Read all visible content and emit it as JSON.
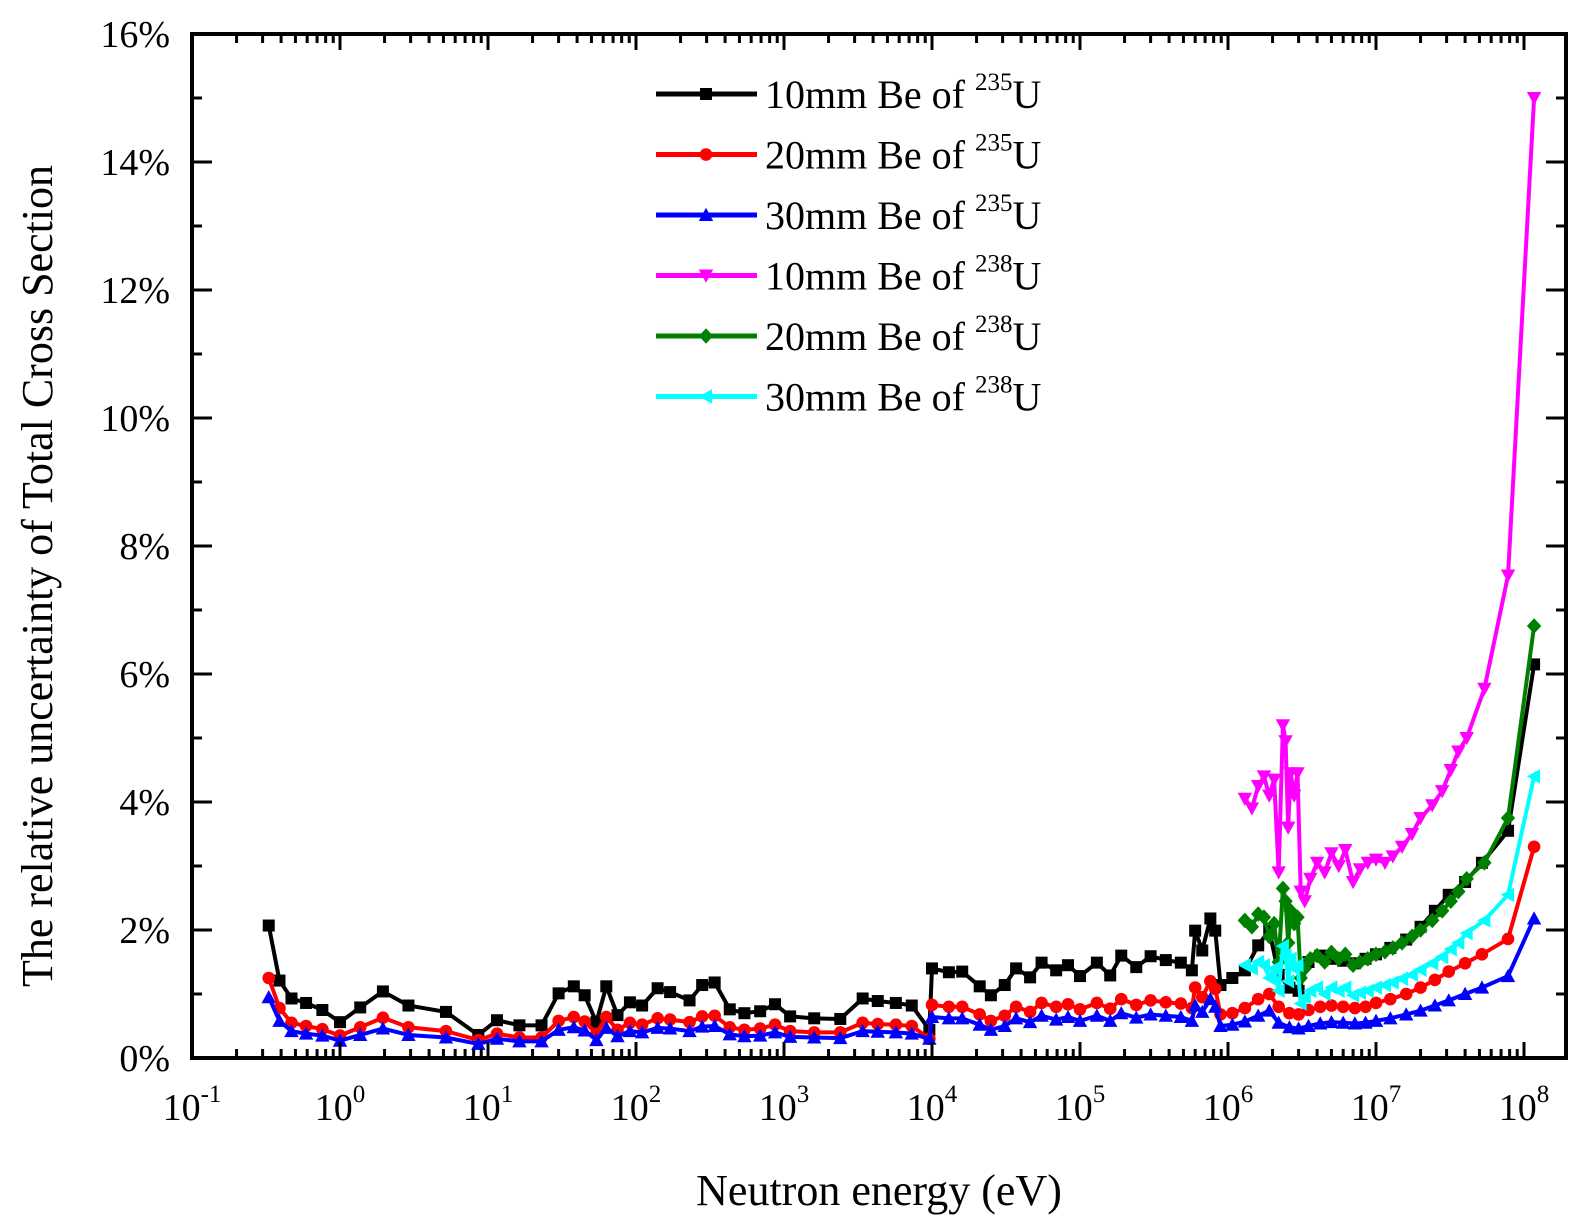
{
  "chart_data": {
    "type": "line",
    "title": "",
    "xlabel": "Neutron energy (eV)",
    "ylabel": "The relative uncertainty of Total Cross Section",
    "xscale": "log",
    "xlim": [
      0.1,
      150000000
    ],
    "ylim": [
      0,
      16
    ],
    "x_ticks": [
      {
        "value": 0.1,
        "base": "10",
        "exp": "-1"
      },
      {
        "value": 1,
        "base": "10",
        "exp": "0"
      },
      {
        "value": 10,
        "base": "10",
        "exp": "1"
      },
      {
        "value": 100,
        "base": "10",
        "exp": "2"
      },
      {
        "value": 1000,
        "base": "10",
        "exp": "3"
      },
      {
        "value": 10000,
        "base": "10",
        "exp": "4"
      },
      {
        "value": 100000,
        "base": "10",
        "exp": "5"
      },
      {
        "value": 1000000,
        "base": "10",
        "exp": "6"
      },
      {
        "value": 10000000,
        "base": "10",
        "exp": "7"
      },
      {
        "value": 100000000,
        "base": "10",
        "exp": "8"
      }
    ],
    "y_ticks": [
      {
        "value": 0,
        "label": "0%"
      },
      {
        "value": 2,
        "label": "2%"
      },
      {
        "value": 4,
        "label": "4%"
      },
      {
        "value": 6,
        "label": "6%"
      },
      {
        "value": 8,
        "label": "8%"
      },
      {
        "value": 10,
        "label": "10%"
      },
      {
        "value": 12,
        "label": "12%"
      },
      {
        "value": 14,
        "label": "14%"
      },
      {
        "value": 16,
        "label": "16%"
      }
    ],
    "grid": false,
    "legend_position": "top-center",
    "series": [
      {
        "name": "10mm Be of 235U",
        "legend_main": "10mm Be of ",
        "legend_sup": "235",
        "legend_tail": "U",
        "color": "#000000",
        "marker": "square",
        "x": [
          0.33,
          0.39,
          0.47,
          0.59,
          0.76,
          1.0,
          1.37,
          1.95,
          2.9,
          5.2,
          8.6,
          11.5,
          16.3,
          23,
          30,
          38,
          45,
          54,
          63,
          75,
          91,
          110,
          140,
          170,
          230,
          280,
          340,
          430,
          540,
          690,
          870,
          1100,
          1600,
          2400,
          3400,
          4300,
          5700,
          7300,
          9600,
          10000,
          13000,
          16000,
          21000,
          25000,
          31000,
          37000,
          46000,
          55000,
          69000,
          83000,
          100000,
          130000,
          160000,
          190000,
          240000,
          300000,
          380000,
          480000,
          570000,
          600000,
          670000,
          760000,
          820000,
          890000,
          1070000,
          1300000,
          1600000,
          1900000,
          2200000,
          2600000,
          3000000,
          3500000,
          4200000,
          5000000,
          6000000,
          7200000,
          8500000,
          10000000,
          12500000,
          16000000,
          20000000,
          25000000,
          31000000,
          40000000,
          52000000,
          78000000,
          117000000
        ],
        "y": [
          2.07,
          1.21,
          0.93,
          0.86,
          0.75,
          0.56,
          0.79,
          1.04,
          0.82,
          0.72,
          0.36,
          0.59,
          0.51,
          0.51,
          1.01,
          1.12,
          0.98,
          0.56,
          1.12,
          0.67,
          0.87,
          0.82,
          1.09,
          1.03,
          0.9,
          1.14,
          1.18,
          0.76,
          0.7,
          0.73,
          0.84,
          0.65,
          0.62,
          0.61,
          0.93,
          0.89,
          0.86,
          0.82,
          0.44,
          1.4,
          1.34,
          1.35,
          1.12,
          0.98,
          1.14,
          1.4,
          1.26,
          1.49,
          1.37,
          1.45,
          1.28,
          1.49,
          1.29,
          1.6,
          1.42,
          1.59,
          1.53,
          1.49,
          1.37,
          1.99,
          1.68,
          2.18,
          1.99,
          1.14,
          1.25,
          1.37,
          1.76,
          2.0,
          1.3,
          1.1,
          1.05,
          1.5,
          1.6,
          1.55,
          1.52,
          1.48,
          1.55,
          1.62,
          1.72,
          1.85,
          2.05,
          2.3,
          2.55,
          2.75,
          3.05,
          3.55,
          6.15
        ]
      },
      {
        "name": "20mm Be of 235U",
        "legend_main": "20mm Be of ",
        "legend_sup": "235",
        "legend_tail": "U",
        "color": "#ff0000",
        "marker": "circle",
        "x": [
          0.33,
          0.39,
          0.47,
          0.59,
          0.76,
          1.0,
          1.37,
          1.95,
          2.9,
          5.2,
          8.6,
          11.5,
          16.3,
          23,
          30,
          38,
          45,
          54,
          63,
          75,
          91,
          110,
          140,
          170,
          230,
          280,
          340,
          430,
          540,
          690,
          870,
          1100,
          1600,
          2400,
          3400,
          4300,
          5700,
          7300,
          9600,
          10000,
          13000,
          16000,
          21000,
          25000,
          31000,
          37000,
          46000,
          55000,
          69000,
          83000,
          100000,
          130000,
          160000,
          190000,
          240000,
          300000,
          380000,
          480000,
          570000,
          600000,
          670000,
          760000,
          820000,
          890000,
          1070000,
          1300000,
          1600000,
          1900000,
          2200000,
          2600000,
          3000000,
          3500000,
          4200000,
          5000000,
          6000000,
          7200000,
          8500000,
          10000000,
          12500000,
          16000000,
          20000000,
          25000000,
          31000000,
          40000000,
          52000000,
          78000000,
          117000000
        ],
        "y": [
          1.25,
          0.78,
          0.55,
          0.5,
          0.45,
          0.35,
          0.48,
          0.63,
          0.48,
          0.42,
          0.28,
          0.38,
          0.32,
          0.32,
          0.58,
          0.64,
          0.57,
          0.38,
          0.64,
          0.44,
          0.55,
          0.52,
          0.62,
          0.6,
          0.56,
          0.65,
          0.66,
          0.48,
          0.44,
          0.46,
          0.52,
          0.42,
          0.4,
          0.4,
          0.55,
          0.53,
          0.52,
          0.5,
          0.3,
          0.83,
          0.8,
          0.8,
          0.68,
          0.58,
          0.66,
          0.8,
          0.72,
          0.86,
          0.8,
          0.84,
          0.76,
          0.86,
          0.77,
          0.92,
          0.83,
          0.9,
          0.87,
          0.85,
          0.78,
          1.1,
          0.95,
          1.2,
          1.08,
          0.68,
          0.7,
          0.78,
          0.92,
          1.0,
          0.8,
          0.7,
          0.68,
          0.75,
          0.8,
          0.82,
          0.8,
          0.78,
          0.8,
          0.86,
          0.92,
          1.0,
          1.1,
          1.22,
          1.35,
          1.48,
          1.62,
          1.86,
          3.3
        ]
      },
      {
        "name": "30mm Be of 235U",
        "legend_main": "30mm Be of ",
        "legend_sup": "235",
        "legend_tail": "U",
        "color": "#0000ff",
        "marker": "triangle-up",
        "x": [
          0.33,
          0.39,
          0.47,
          0.59,
          0.76,
          1.0,
          1.37,
          1.95,
          2.9,
          5.2,
          8.6,
          11.5,
          16.3,
          23,
          30,
          38,
          45,
          54,
          63,
          75,
          91,
          110,
          140,
          170,
          230,
          280,
          340,
          430,
          540,
          690,
          870,
          1100,
          1600,
          2400,
          3400,
          4300,
          5700,
          7300,
          9600,
          10000,
          13000,
          16000,
          21000,
          25000,
          31000,
          37000,
          46000,
          55000,
          69000,
          83000,
          100000,
          130000,
          160000,
          190000,
          240000,
          300000,
          380000,
          480000,
          570000,
          600000,
          670000,
          760000,
          820000,
          890000,
          1070000,
          1300000,
          1600000,
          1900000,
          2200000,
          2600000,
          3000000,
          3500000,
          4200000,
          5000000,
          6000000,
          7200000,
          8500000,
          10000000,
          12500000,
          16000000,
          20000000,
          25000000,
          31000000,
          40000000,
          52000000,
          78000000,
          117000000
        ],
        "y": [
          0.95,
          0.58,
          0.42,
          0.38,
          0.35,
          0.27,
          0.36,
          0.46,
          0.36,
          0.32,
          0.22,
          0.3,
          0.26,
          0.26,
          0.44,
          0.48,
          0.43,
          0.28,
          0.47,
          0.34,
          0.42,
          0.4,
          0.47,
          0.46,
          0.42,
          0.49,
          0.5,
          0.37,
          0.34,
          0.35,
          0.4,
          0.33,
          0.32,
          0.31,
          0.42,
          0.41,
          0.4,
          0.38,
          0.3,
          0.64,
          0.62,
          0.62,
          0.52,
          0.44,
          0.5,
          0.62,
          0.56,
          0.66,
          0.6,
          0.64,
          0.58,
          0.66,
          0.58,
          0.7,
          0.63,
          0.68,
          0.66,
          0.64,
          0.58,
          0.82,
          0.72,
          0.92,
          0.8,
          0.5,
          0.52,
          0.57,
          0.66,
          0.74,
          0.55,
          0.48,
          0.46,
          0.5,
          0.54,
          0.56,
          0.55,
          0.54,
          0.55,
          0.58,
          0.62,
          0.68,
          0.74,
          0.82,
          0.9,
          1.0,
          1.1,
          1.28,
          2.18
        ]
      },
      {
        "name": "10mm Be of 238U",
        "legend_main": "10mm Be of ",
        "legend_sup": "238",
        "legend_tail": "U",
        "color": "#ff00ff",
        "marker": "triangle-down",
        "x": [
          1300000,
          1450000,
          1600000,
          1750000,
          1900000,
          2050000,
          2200000,
          2350000,
          2450000,
          2550000,
          2650000,
          2800000,
          2950000,
          3100000,
          3300000,
          3600000,
          4000000,
          4500000,
          5000000,
          5600000,
          6200000,
          7000000,
          7800000,
          8800000,
          10000000,
          11500000,
          13000000,
          15000000,
          17500000,
          20000000,
          24000000,
          28000000,
          32000000,
          36000000,
          41000000,
          54000000,
          78000000,
          117000000
        ],
        "y": [
          4.05,
          3.9,
          4.25,
          4.4,
          4.1,
          4.35,
          2.9,
          5.2,
          4.95,
          3.6,
          4.45,
          4.1,
          4.45,
          2.6,
          2.45,
          2.8,
          3.05,
          2.9,
          3.2,
          3.0,
          3.25,
          2.75,
          2.95,
          3.05,
          3.1,
          3.05,
          3.15,
          3.3,
          3.5,
          3.75,
          3.95,
          4.17,
          4.5,
          4.79,
          5.0,
          5.77,
          7.54,
          15.0
        ]
      },
      {
        "name": "20mm Be of 238U",
        "legend_main": "20mm Be of ",
        "legend_sup": "238",
        "legend_tail": "U",
        "color": "#008000",
        "marker": "diamond",
        "x": [
          1300000,
          1450000,
          1600000,
          1750000,
          1900000,
          2050000,
          2200000,
          2350000,
          2450000,
          2550000,
          2650000,
          2800000,
          2950000,
          3100000,
          3300000,
          3600000,
          4000000,
          4500000,
          5000000,
          5600000,
          6200000,
          7000000,
          7800000,
          8800000,
          10000000,
          11500000,
          13000000,
          15000000,
          17500000,
          20000000,
          24000000,
          28000000,
          32000000,
          36000000,
          41000000,
          54000000,
          78000000,
          117000000
        ],
        "y": [
          2.15,
          2.05,
          2.25,
          2.2,
          1.9,
          2.1,
          1.5,
          2.65,
          2.45,
          1.8,
          2.3,
          2.1,
          2.2,
          1.25,
          1.4,
          1.55,
          1.6,
          1.5,
          1.65,
          1.55,
          1.62,
          1.45,
          1.5,
          1.55,
          1.62,
          1.66,
          1.72,
          1.8,
          1.9,
          2.0,
          2.15,
          2.3,
          2.45,
          2.6,
          2.8,
          3.05,
          3.75,
          6.75
        ]
      },
      {
        "name": "30mm Be of 238U",
        "legend_main": "30mm Be of ",
        "legend_sup": "238",
        "legend_tail": "U",
        "color": "#00ffff",
        "marker": "triangle-left",
        "x": [
          1300000,
          1450000,
          1600000,
          1750000,
          1900000,
          2050000,
          2200000,
          2350000,
          2450000,
          2550000,
          2650000,
          2800000,
          2950000,
          3100000,
          3300000,
          3600000,
          4000000,
          4500000,
          5000000,
          5600000,
          6200000,
          7000000,
          7800000,
          8800000,
          10000000,
          11500000,
          13000000,
          15000000,
          17500000,
          20000000,
          24000000,
          28000000,
          32000000,
          36000000,
          41000000,
          54000000,
          78000000,
          117000000
        ],
        "y": [
          1.45,
          1.4,
          1.5,
          1.45,
          1.25,
          1.4,
          1.05,
          1.75,
          1.6,
          1.2,
          1.55,
          1.4,
          1.45,
          0.85,
          0.95,
          1.05,
          1.1,
          1.0,
          1.1,
          1.05,
          1.1,
          0.98,
          1.02,
          1.05,
          1.1,
          1.14,
          1.18,
          1.24,
          1.3,
          1.38,
          1.48,
          1.58,
          1.7,
          1.8,
          1.95,
          2.15,
          2.55,
          4.4
        ]
      }
    ]
  }
}
